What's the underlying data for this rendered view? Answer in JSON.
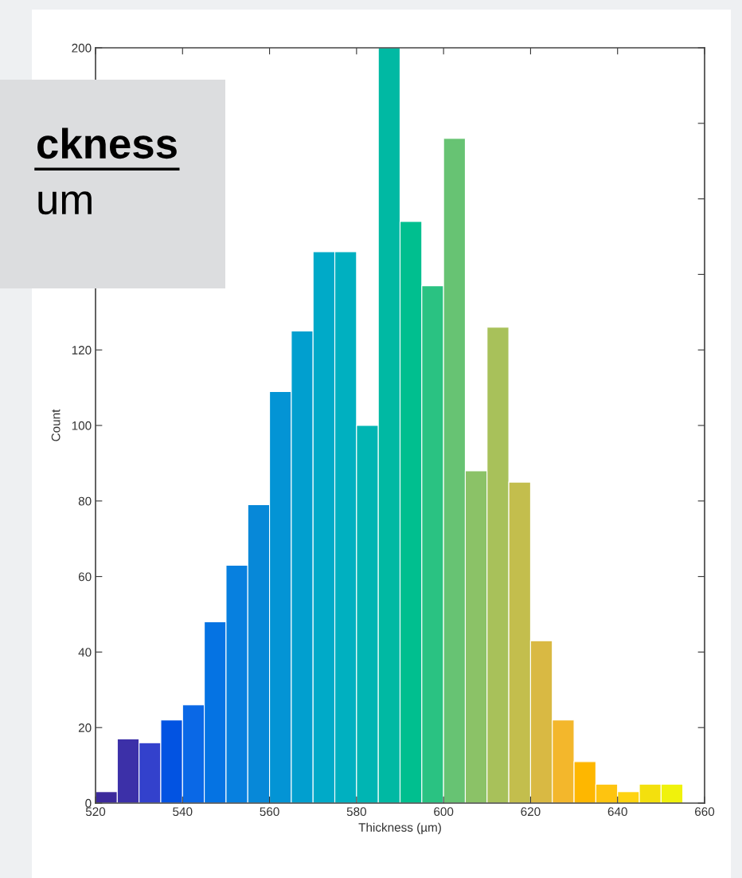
{
  "chart_data": {
    "type": "histogram",
    "xlabel": "Thickness (µm)",
    "ylabel": "Count",
    "bins": [
      520,
      525,
      530,
      535,
      540,
      545,
      550,
      555,
      560,
      565,
      570,
      575,
      580,
      585,
      590,
      595,
      600,
      605,
      610,
      615,
      620,
      625,
      630,
      635,
      640,
      645,
      650,
      655
    ],
    "values": [
      3,
      17,
      16,
      22,
      26,
      48,
      63,
      79,
      109,
      125,
      146,
      146,
      100,
      200,
      154,
      137,
      176,
      88,
      126,
      85,
      43,
      22,
      11,
      5,
      3,
      5,
      5
    ],
    "colors": [
      "#3d2a9c",
      "#3c30a8",
      "#3341cc",
      "#0253e2",
      "#0a68e6",
      "#0573e3",
      "#0780df",
      "#0788d8",
      "#0394d5",
      "#019fcf",
      "#00aac8",
      "#00b0c0",
      "#00b5b3",
      "#00b9a3",
      "#00bf8f",
      "#2ac282",
      "#67c373",
      "#8bc267",
      "#a8c15a",
      "#c3be4d",
      "#d9b943",
      "#f3b72c",
      "#feb700",
      "#fec410",
      "#fed311",
      "#f3e00e",
      "#f0f20c"
    ],
    "xlim": [
      520,
      660
    ],
    "xticks": [
      520,
      540,
      560,
      580,
      600,
      620,
      640,
      660
    ],
    "ylim": [
      0,
      200
    ],
    "yticks": [
      0,
      20,
      40,
      60,
      80,
      100,
      120,
      {
        "value": 140,
        "label": null
      },
      {
        "value": 160,
        "label": null
      },
      {
        "value": 180,
        "label": null
      },
      200
    ],
    "grid": false,
    "annotations": [
      "ckness",
      "um"
    ]
  }
}
